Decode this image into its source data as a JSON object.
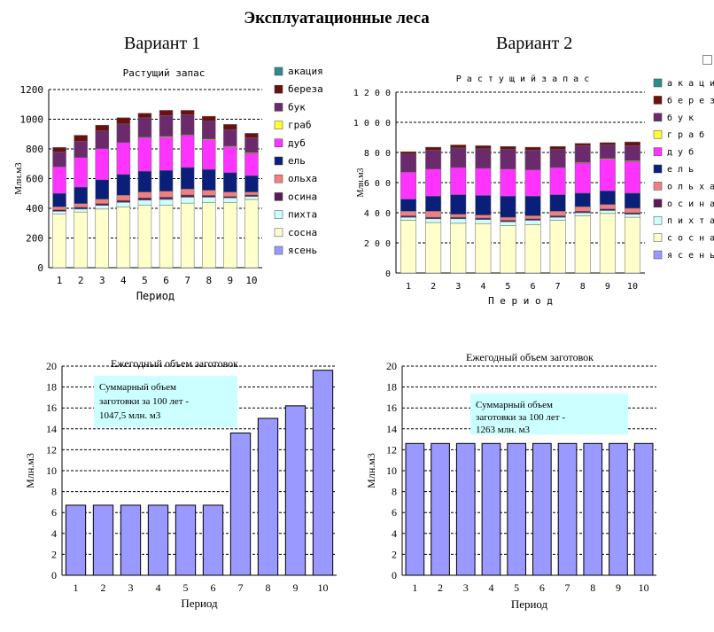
{
  "page": {
    "title": "Эксплуатационные леса",
    "variant1": "Вариант 1",
    "variant2": "Вариант 2"
  },
  "colors": {
    "акация": "#2e8b8b",
    "береза": "#6b0f0f",
    "бук": "#6b2a6b",
    "граб": "#ffff33",
    "дуб": "#ff33ff",
    "ель": "#0a1f7a",
    "ольха": "#f08080",
    "осина": "#5a1a5a",
    "пихта": "#ccffff",
    "сосна": "#ffffcc",
    "ясень": "#9999ff",
    "harvest": "#9999ff",
    "note_bg": "#ccffff"
  },
  "chart_data": [
    {
      "id": "v1_stock",
      "type": "bar",
      "stacked": true,
      "title": "Растущий запас",
      "xlabel": "Период",
      "ylabel": "Млн.м3",
      "ylim": [
        0,
        1200
      ],
      "yticks": [
        "0",
        "200",
        "400",
        "600",
        "800",
        "1000",
        "1200"
      ],
      "categories": [
        "1",
        "2",
        "3",
        "4",
        "5",
        "6",
        "7",
        "8",
        "9",
        "10"
      ],
      "grid": true,
      "legend_position": "right",
      "series": [
        {
          "name": "ясень",
          "values": [
            0,
            0,
            0,
            0,
            0,
            0,
            0,
            0,
            0,
            0
          ]
        },
        {
          "name": "сосна",
          "values": [
            360,
            375,
            395,
            410,
            420,
            420,
            435,
            440,
            440,
            460
          ]
        },
        {
          "name": "пихта",
          "values": [
            20,
            20,
            25,
            30,
            35,
            40,
            40,
            35,
            30,
            20
          ]
        },
        {
          "name": "осина",
          "values": [
            10,
            12,
            12,
            13,
            15,
            15,
            15,
            12,
            10,
            10
          ]
        },
        {
          "name": "ольха",
          "values": [
            20,
            25,
            30,
            35,
            40,
            40,
            40,
            35,
            30,
            20
          ]
        },
        {
          "name": "ель",
          "values": [
            90,
            110,
            130,
            140,
            140,
            140,
            145,
            140,
            130,
            110
          ]
        },
        {
          "name": "дуб",
          "values": [
            180,
            200,
            210,
            215,
            225,
            225,
            215,
            200,
            175,
            150
          ]
        },
        {
          "name": "граб",
          "values": [
            0,
            0,
            0,
            0,
            5,
            5,
            5,
            5,
            5,
            5
          ]
        },
        {
          "name": "бук",
          "values": [
            100,
            110,
            120,
            125,
            130,
            140,
            135,
            120,
            110,
            100
          ]
        },
        {
          "name": "береза",
          "values": [
            30,
            40,
            38,
            42,
            30,
            35,
            30,
            33,
            35,
            30
          ]
        },
        {
          "name": "акация",
          "values": [
            0,
            0,
            0,
            0,
            0,
            0,
            0,
            0,
            0,
            0
          ]
        }
      ]
    },
    {
      "id": "v2_stock",
      "type": "bar",
      "stacked": true,
      "title": "Растущий запас",
      "xlabel": "Период",
      "ylabel": "Млн.м3",
      "ylim": [
        0,
        1200
      ],
      "yticks": [
        "0",
        "200",
        "400",
        "600",
        "800",
        "1 000",
        "1 200"
      ],
      "categories": [
        "1",
        "2",
        "3",
        "4",
        "5",
        "6",
        "7",
        "8",
        "9",
        "10"
      ],
      "grid": true,
      "legend_position": "right",
      "series": [
        {
          "name": "ясень",
          "values": [
            0,
            0,
            0,
            0,
            0,
            0,
            0,
            0,
            0,
            0
          ]
        },
        {
          "name": "сосна",
          "values": [
            350,
            335,
            330,
            325,
            315,
            320,
            350,
            380,
            395,
            370
          ]
        },
        {
          "name": "пихта",
          "values": [
            20,
            25,
            30,
            30,
            25,
            30,
            20,
            20,
            20,
            20
          ]
        },
        {
          "name": "осина",
          "values": [
            10,
            10,
            10,
            10,
            10,
            10,
            10,
            10,
            10,
            10
          ]
        },
        {
          "name": "ольха",
          "values": [
            30,
            40,
            20,
            20,
            20,
            20,
            30,
            30,
            30,
            30
          ]
        },
        {
          "name": "ель",
          "values": [
            80,
            100,
            130,
            130,
            140,
            130,
            110,
            90,
            90,
            100
          ]
        },
        {
          "name": "дуб",
          "values": [
            180,
            180,
            180,
            180,
            180,
            175,
            180,
            200,
            210,
            210
          ]
        },
        {
          "name": "граб",
          "values": [
            0,
            0,
            0,
            0,
            0,
            0,
            0,
            5,
            5,
            5
          ]
        },
        {
          "name": "бук",
          "values": [
            120,
            125,
            130,
            130,
            130,
            130,
            120,
            110,
            90,
            100
          ]
        },
        {
          "name": "береза",
          "values": [
            15,
            20,
            20,
            20,
            20,
            20,
            20,
            15,
            15,
            25
          ]
        },
        {
          "name": "акация",
          "values": [
            0,
            0,
            0,
            0,
            0,
            0,
            0,
            0,
            0,
            0
          ]
        }
      ]
    },
    {
      "id": "v1_harvest",
      "type": "bar",
      "title": "Ежегодный объем заготовок",
      "xlabel": "Период",
      "ylabel": "Млн.м3",
      "ylim": [
        0,
        20
      ],
      "yticks": [
        "0",
        "2",
        "4",
        "6",
        "8",
        "10",
        "12",
        "14",
        "16",
        "18",
        "20"
      ],
      "categories": [
        "1",
        "2",
        "3",
        "4",
        "5",
        "6",
        "7",
        "8",
        "9",
        "10"
      ],
      "values": [
        6.7,
        6.7,
        6.7,
        6.7,
        6.7,
        6.7,
        13.6,
        15.0,
        16.2,
        19.6
      ],
      "grid": true,
      "annotation": [
        "Суммарный объем",
        "заготовки за 100 лет -",
        "1047,5 млн. м3"
      ]
    },
    {
      "id": "v2_harvest",
      "type": "bar",
      "title": "Ежегодный объем заготовок",
      "xlabel": "Период",
      "ylabel": "Млн.м3",
      "ylim": [
        0,
        20
      ],
      "yticks": [
        "0",
        "2",
        "4",
        "6",
        "8",
        "10",
        "12",
        "14",
        "16",
        "18",
        "20"
      ],
      "categories": [
        "1",
        "2",
        "3",
        "4",
        "5",
        "6",
        "7",
        "8",
        "9",
        "10"
      ],
      "values": [
        12.6,
        12.6,
        12.6,
        12.6,
        12.6,
        12.6,
        12.6,
        12.6,
        12.6,
        12.6
      ],
      "grid": true,
      "annotation": [
        "Суммарный объем",
        "заготовки за 100 лет -",
        "1263 млн. м3"
      ]
    }
  ]
}
